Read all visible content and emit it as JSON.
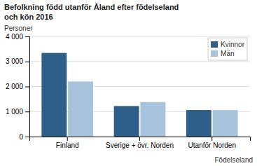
{
  "chart_data": {
    "type": "bar",
    "title": "Befolkning född utanför Åland efter födelseland",
    "subtitle": "och kön 2016",
    "ylabel": "Personer",
    "xlabel": "Födelseland",
    "categories": [
      "Finland",
      "Sverige + övr. Norden",
      "Utanför Norden"
    ],
    "series": [
      {
        "name": "Kvinnor",
        "color": "#2E5F8A",
        "values": [
          3340,
          1220,
          1060
        ]
      },
      {
        "name": "Män",
        "color": "#A8C4DC",
        "values": [
          2200,
          1380,
          1060
        ]
      }
    ],
    "ylim": [
      0,
      4000
    ],
    "yticks": [
      0,
      {
        "value": 1000,
        "label": "1 000"
      },
      {
        "value": 2000,
        "label": "2 000"
      },
      {
        "value": 3000,
        "label": "3 000"
      },
      {
        "value": 4000,
        "label": "4 000"
      }
    ],
    "grid": true,
    "legend": "upper right"
  }
}
